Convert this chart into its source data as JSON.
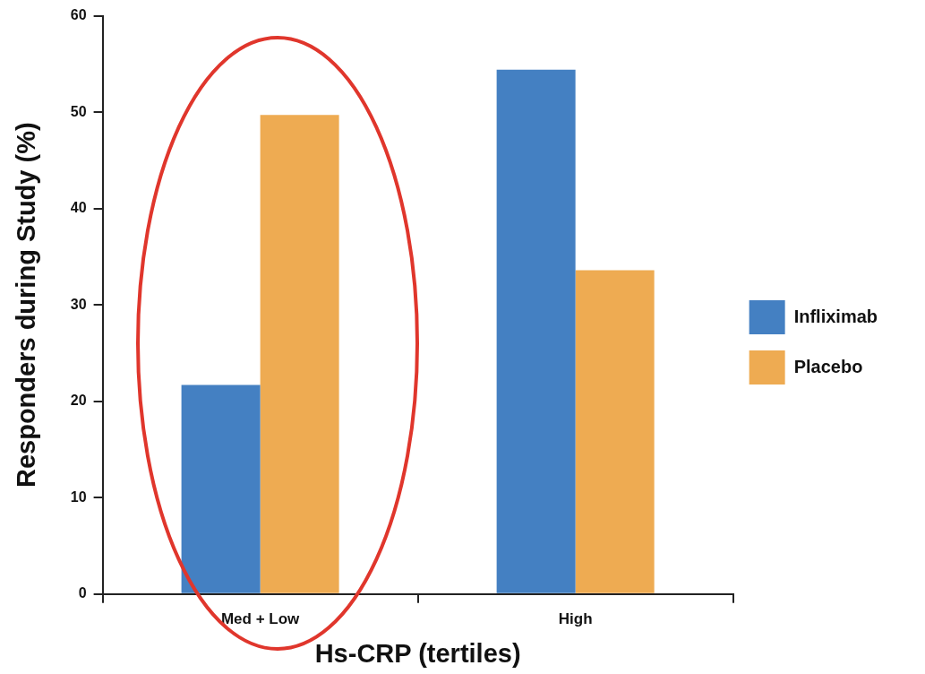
{
  "chart_data": {
    "type": "bar",
    "xlabel": "Hs-CRP (tertiles)",
    "ylabel": "Responders during Study (%)",
    "categories": [
      "Med + Low",
      "High"
    ],
    "series": [
      {
        "name": "Infliximab",
        "color": "#4480c2",
        "values": [
          21.7,
          54.4
        ]
      },
      {
        "name": "Placebo",
        "color": "#eeab52",
        "values": [
          49.7,
          33.6
        ]
      }
    ],
    "ylim": [
      0,
      60
    ],
    "yticks": [
      0,
      10,
      20,
      30,
      40,
      50,
      60
    ],
    "legend": "right"
  }
}
